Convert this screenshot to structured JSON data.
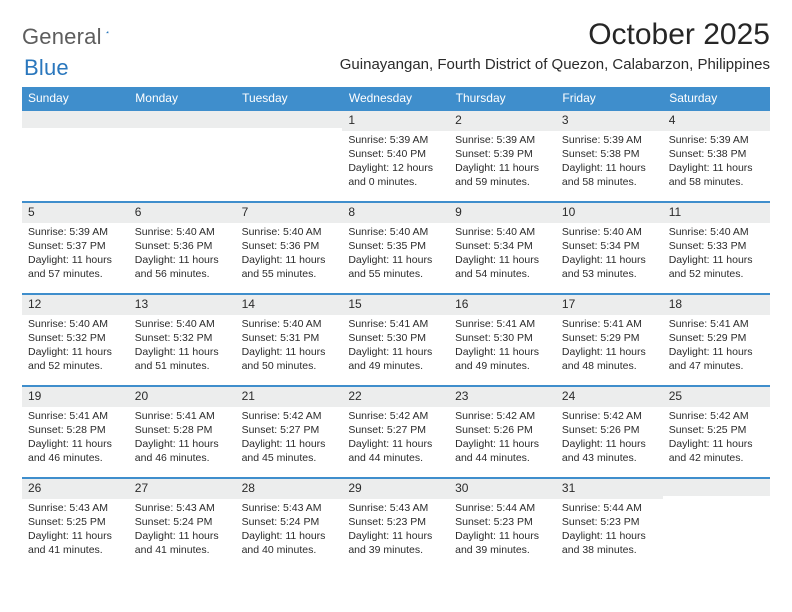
{
  "logo": {
    "text1": "General",
    "text2": "Blue"
  },
  "title": "October 2025",
  "location": "Guinayangan, Fourth District of Quezon, Calabarzon, Philippines",
  "colors": {
    "header_bg": "#3f8ecc",
    "header_text": "#ffffff",
    "daynum_bg": "#eceded",
    "row_border": "#3f8ecc",
    "logo_gray": "#5d5d5d",
    "logo_blue": "#2a77bd"
  },
  "weekdays": [
    "Sunday",
    "Monday",
    "Tuesday",
    "Wednesday",
    "Thursday",
    "Friday",
    "Saturday"
  ],
  "weeks": [
    [
      null,
      null,
      null,
      {
        "n": "1",
        "sr": "Sunrise: 5:39 AM",
        "ss": "Sunset: 5:40 PM",
        "d1": "Daylight: 12 hours",
        "d2": "and 0 minutes."
      },
      {
        "n": "2",
        "sr": "Sunrise: 5:39 AM",
        "ss": "Sunset: 5:39 PM",
        "d1": "Daylight: 11 hours",
        "d2": "and 59 minutes."
      },
      {
        "n": "3",
        "sr": "Sunrise: 5:39 AM",
        "ss": "Sunset: 5:38 PM",
        "d1": "Daylight: 11 hours",
        "d2": "and 58 minutes."
      },
      {
        "n": "4",
        "sr": "Sunrise: 5:39 AM",
        "ss": "Sunset: 5:38 PM",
        "d1": "Daylight: 11 hours",
        "d2": "and 58 minutes."
      }
    ],
    [
      {
        "n": "5",
        "sr": "Sunrise: 5:39 AM",
        "ss": "Sunset: 5:37 PM",
        "d1": "Daylight: 11 hours",
        "d2": "and 57 minutes."
      },
      {
        "n": "6",
        "sr": "Sunrise: 5:40 AM",
        "ss": "Sunset: 5:36 PM",
        "d1": "Daylight: 11 hours",
        "d2": "and 56 minutes."
      },
      {
        "n": "7",
        "sr": "Sunrise: 5:40 AM",
        "ss": "Sunset: 5:36 PM",
        "d1": "Daylight: 11 hours",
        "d2": "and 55 minutes."
      },
      {
        "n": "8",
        "sr": "Sunrise: 5:40 AM",
        "ss": "Sunset: 5:35 PM",
        "d1": "Daylight: 11 hours",
        "d2": "and 55 minutes."
      },
      {
        "n": "9",
        "sr": "Sunrise: 5:40 AM",
        "ss": "Sunset: 5:34 PM",
        "d1": "Daylight: 11 hours",
        "d2": "and 54 minutes."
      },
      {
        "n": "10",
        "sr": "Sunrise: 5:40 AM",
        "ss": "Sunset: 5:34 PM",
        "d1": "Daylight: 11 hours",
        "d2": "and 53 minutes."
      },
      {
        "n": "11",
        "sr": "Sunrise: 5:40 AM",
        "ss": "Sunset: 5:33 PM",
        "d1": "Daylight: 11 hours",
        "d2": "and 52 minutes."
      }
    ],
    [
      {
        "n": "12",
        "sr": "Sunrise: 5:40 AM",
        "ss": "Sunset: 5:32 PM",
        "d1": "Daylight: 11 hours",
        "d2": "and 52 minutes."
      },
      {
        "n": "13",
        "sr": "Sunrise: 5:40 AM",
        "ss": "Sunset: 5:32 PM",
        "d1": "Daylight: 11 hours",
        "d2": "and 51 minutes."
      },
      {
        "n": "14",
        "sr": "Sunrise: 5:40 AM",
        "ss": "Sunset: 5:31 PM",
        "d1": "Daylight: 11 hours",
        "d2": "and 50 minutes."
      },
      {
        "n": "15",
        "sr": "Sunrise: 5:41 AM",
        "ss": "Sunset: 5:30 PM",
        "d1": "Daylight: 11 hours",
        "d2": "and 49 minutes."
      },
      {
        "n": "16",
        "sr": "Sunrise: 5:41 AM",
        "ss": "Sunset: 5:30 PM",
        "d1": "Daylight: 11 hours",
        "d2": "and 49 minutes."
      },
      {
        "n": "17",
        "sr": "Sunrise: 5:41 AM",
        "ss": "Sunset: 5:29 PM",
        "d1": "Daylight: 11 hours",
        "d2": "and 48 minutes."
      },
      {
        "n": "18",
        "sr": "Sunrise: 5:41 AM",
        "ss": "Sunset: 5:29 PM",
        "d1": "Daylight: 11 hours",
        "d2": "and 47 minutes."
      }
    ],
    [
      {
        "n": "19",
        "sr": "Sunrise: 5:41 AM",
        "ss": "Sunset: 5:28 PM",
        "d1": "Daylight: 11 hours",
        "d2": "and 46 minutes."
      },
      {
        "n": "20",
        "sr": "Sunrise: 5:41 AM",
        "ss": "Sunset: 5:28 PM",
        "d1": "Daylight: 11 hours",
        "d2": "and 46 minutes."
      },
      {
        "n": "21",
        "sr": "Sunrise: 5:42 AM",
        "ss": "Sunset: 5:27 PM",
        "d1": "Daylight: 11 hours",
        "d2": "and 45 minutes."
      },
      {
        "n": "22",
        "sr": "Sunrise: 5:42 AM",
        "ss": "Sunset: 5:27 PM",
        "d1": "Daylight: 11 hours",
        "d2": "and 44 minutes."
      },
      {
        "n": "23",
        "sr": "Sunrise: 5:42 AM",
        "ss": "Sunset: 5:26 PM",
        "d1": "Daylight: 11 hours",
        "d2": "and 44 minutes."
      },
      {
        "n": "24",
        "sr": "Sunrise: 5:42 AM",
        "ss": "Sunset: 5:26 PM",
        "d1": "Daylight: 11 hours",
        "d2": "and 43 minutes."
      },
      {
        "n": "25",
        "sr": "Sunrise: 5:42 AM",
        "ss": "Sunset: 5:25 PM",
        "d1": "Daylight: 11 hours",
        "d2": "and 42 minutes."
      }
    ],
    [
      {
        "n": "26",
        "sr": "Sunrise: 5:43 AM",
        "ss": "Sunset: 5:25 PM",
        "d1": "Daylight: 11 hours",
        "d2": "and 41 minutes."
      },
      {
        "n": "27",
        "sr": "Sunrise: 5:43 AM",
        "ss": "Sunset: 5:24 PM",
        "d1": "Daylight: 11 hours",
        "d2": "and 41 minutes."
      },
      {
        "n": "28",
        "sr": "Sunrise: 5:43 AM",
        "ss": "Sunset: 5:24 PM",
        "d1": "Daylight: 11 hours",
        "d2": "and 40 minutes."
      },
      {
        "n": "29",
        "sr": "Sunrise: 5:43 AM",
        "ss": "Sunset: 5:23 PM",
        "d1": "Daylight: 11 hours",
        "d2": "and 39 minutes."
      },
      {
        "n": "30",
        "sr": "Sunrise: 5:44 AM",
        "ss": "Sunset: 5:23 PM",
        "d1": "Daylight: 11 hours",
        "d2": "and 39 minutes."
      },
      {
        "n": "31",
        "sr": "Sunrise: 5:44 AM",
        "ss": "Sunset: 5:23 PM",
        "d1": "Daylight: 11 hours",
        "d2": "and 38 minutes."
      },
      null
    ]
  ]
}
